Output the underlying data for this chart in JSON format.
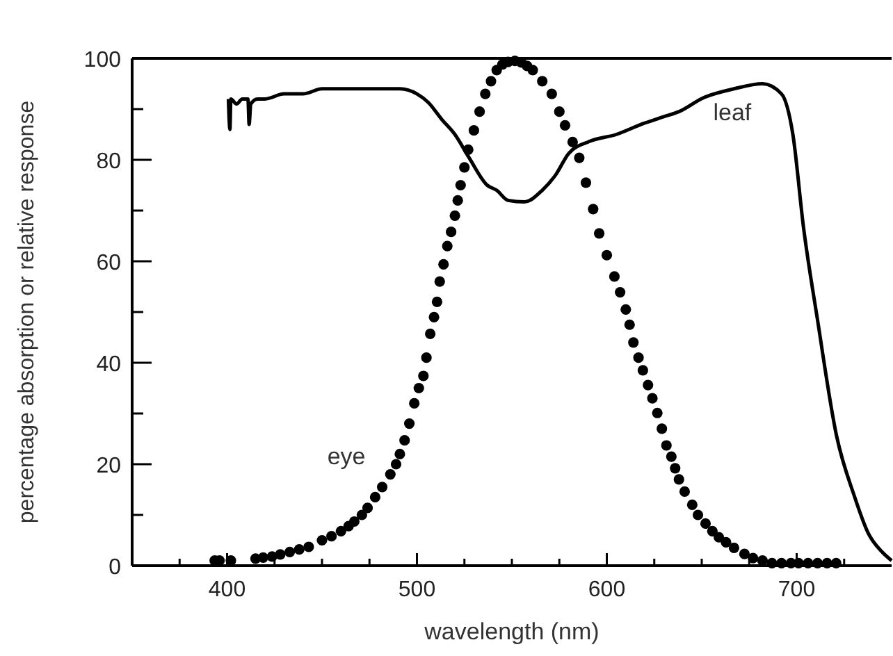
{
  "chart_data": {
    "type": "line",
    "xlabel": "wavelength (nm)",
    "ylabel": "percentage absorption or relative response",
    "xlim": [
      350,
      750
    ],
    "xticks": [
      {
        "value": 350,
        "label": null
      },
      {
        "value": 375,
        "label": null
      },
      400,
      {
        "value": 425,
        "label": null
      },
      {
        "value": 450,
        "label": null
      },
      {
        "value": 475,
        "label": null
      },
      500,
      {
        "value": 525,
        "label": null
      },
      {
        "value": 550,
        "label": null
      },
      {
        "value": 575,
        "label": null
      },
      600,
      {
        "value": 625,
        "label": null
      },
      {
        "value": 650,
        "label": null
      },
      {
        "value": 675,
        "label": null
      },
      700,
      {
        "value": 725,
        "label": null
      }
    ],
    "ylim": [
      0,
      100
    ],
    "yticks": [
      0,
      {
        "value": 10,
        "label": null
      },
      20,
      {
        "value": 30,
        "label": null
      },
      40,
      {
        "value": 50,
        "label": null
      },
      60,
      {
        "value": 70,
        "label": null
      },
      80,
      {
        "value": 90,
        "label": null
      },
      100
    ],
    "grid": false,
    "series": [
      {
        "name": "leaf",
        "marker": "none",
        "line_style": "solid",
        "color": "#000000",
        "x": [
          400.7,
          401.5,
          402,
          405,
          408,
          411,
          411.6,
          412.5,
          416,
          420,
          430,
          440,
          450,
          460,
          470,
          480,
          491,
          500,
          506,
          513,
          520,
          527.5,
          537,
          542,
          548,
          556.5,
          566,
          573,
          580,
          590.6,
          605,
          619.6,
          630,
          638,
          650.7,
          667,
          682,
          692,
          698,
          703.6,
          711,
          721,
          730.4,
          737.7,
          745,
          750
        ],
        "values": [
          92,
          86,
          92,
          91,
          92,
          92,
          87,
          91,
          92,
          92,
          93,
          93,
          94,
          94,
          94,
          94,
          94,
          93,
          91.3,
          88,
          85,
          80.4,
          75,
          74,
          72,
          71.7,
          74,
          77,
          81.3,
          83.6,
          85,
          87.2,
          88.5,
          89.5,
          92.2,
          94,
          95,
          93,
          85,
          66.7,
          48.4,
          25.6,
          13.7,
          6.4,
          2.7,
          1
        ]
      },
      {
        "name": "eye",
        "type": "scatter",
        "marker": "circle",
        "color": "#000000",
        "x": [
          393.5,
          396,
          402,
          415,
          419,
          423.7,
          428,
          433,
          438,
          443,
          450,
          455,
          460,
          464,
          467,
          471,
          474,
          478,
          481.7,
          486,
          489,
          491,
          493.5,
          496,
          498.6,
          501,
          503.4,
          505,
          507,
          509,
          510.6,
          512,
          514,
          516,
          518,
          520,
          521.5,
          523,
          525,
          527,
          530,
          533,
          536,
          539,
          542,
          545,
          548,
          551.6,
          555,
          558,
          561,
          566,
          571,
          575,
          578,
          582,
          585.5,
          589,
          592.8,
          596,
          600,
          604,
          607,
          610,
          612,
          614,
          616.7,
          619,
          621.7,
          624,
          626.6,
          629,
          631.4,
          634,
          636,
          638,
          641,
          645,
          648,
          652,
          655.6,
          659,
          662.8,
          667,
          672.5,
          677,
          682,
          687,
          692,
          697,
          701,
          706,
          711,
          716,
          720.8
        ],
        "values": [
          1,
          1,
          1,
          1.4,
          1.6,
          1.8,
          2.2,
          2.7,
          3.2,
          3.7,
          5,
          5.8,
          6.8,
          7.8,
          8.7,
          10,
          11.4,
          13.5,
          15.5,
          18,
          20,
          22,
          24.7,
          28,
          32,
          35,
          37.4,
          41,
          45.7,
          49,
          52,
          56,
          59.4,
          63,
          65.8,
          69,
          72,
          75,
          78.5,
          82,
          85.8,
          89.5,
          93,
          95.5,
          97.7,
          98.8,
          99.3,
          99.5,
          99.2,
          98.5,
          97.7,
          95.5,
          93,
          89.5,
          86.8,
          83.5,
          80.4,
          75.5,
          70.3,
          65.5,
          61.2,
          57,
          53.9,
          50.5,
          47.5,
          44,
          41,
          38.5,
          35.6,
          33,
          30.1,
          27,
          23.7,
          21.5,
          19.2,
          17,
          14.6,
          12,
          10,
          8.3,
          6.8,
          5.6,
          4.6,
          3.5,
          2.3,
          1.5,
          1,
          0.5,
          0.5,
          0.5,
          0.5,
          0.5,
          0.5,
          0.5,
          0.5
        ]
      }
    ]
  }
}
